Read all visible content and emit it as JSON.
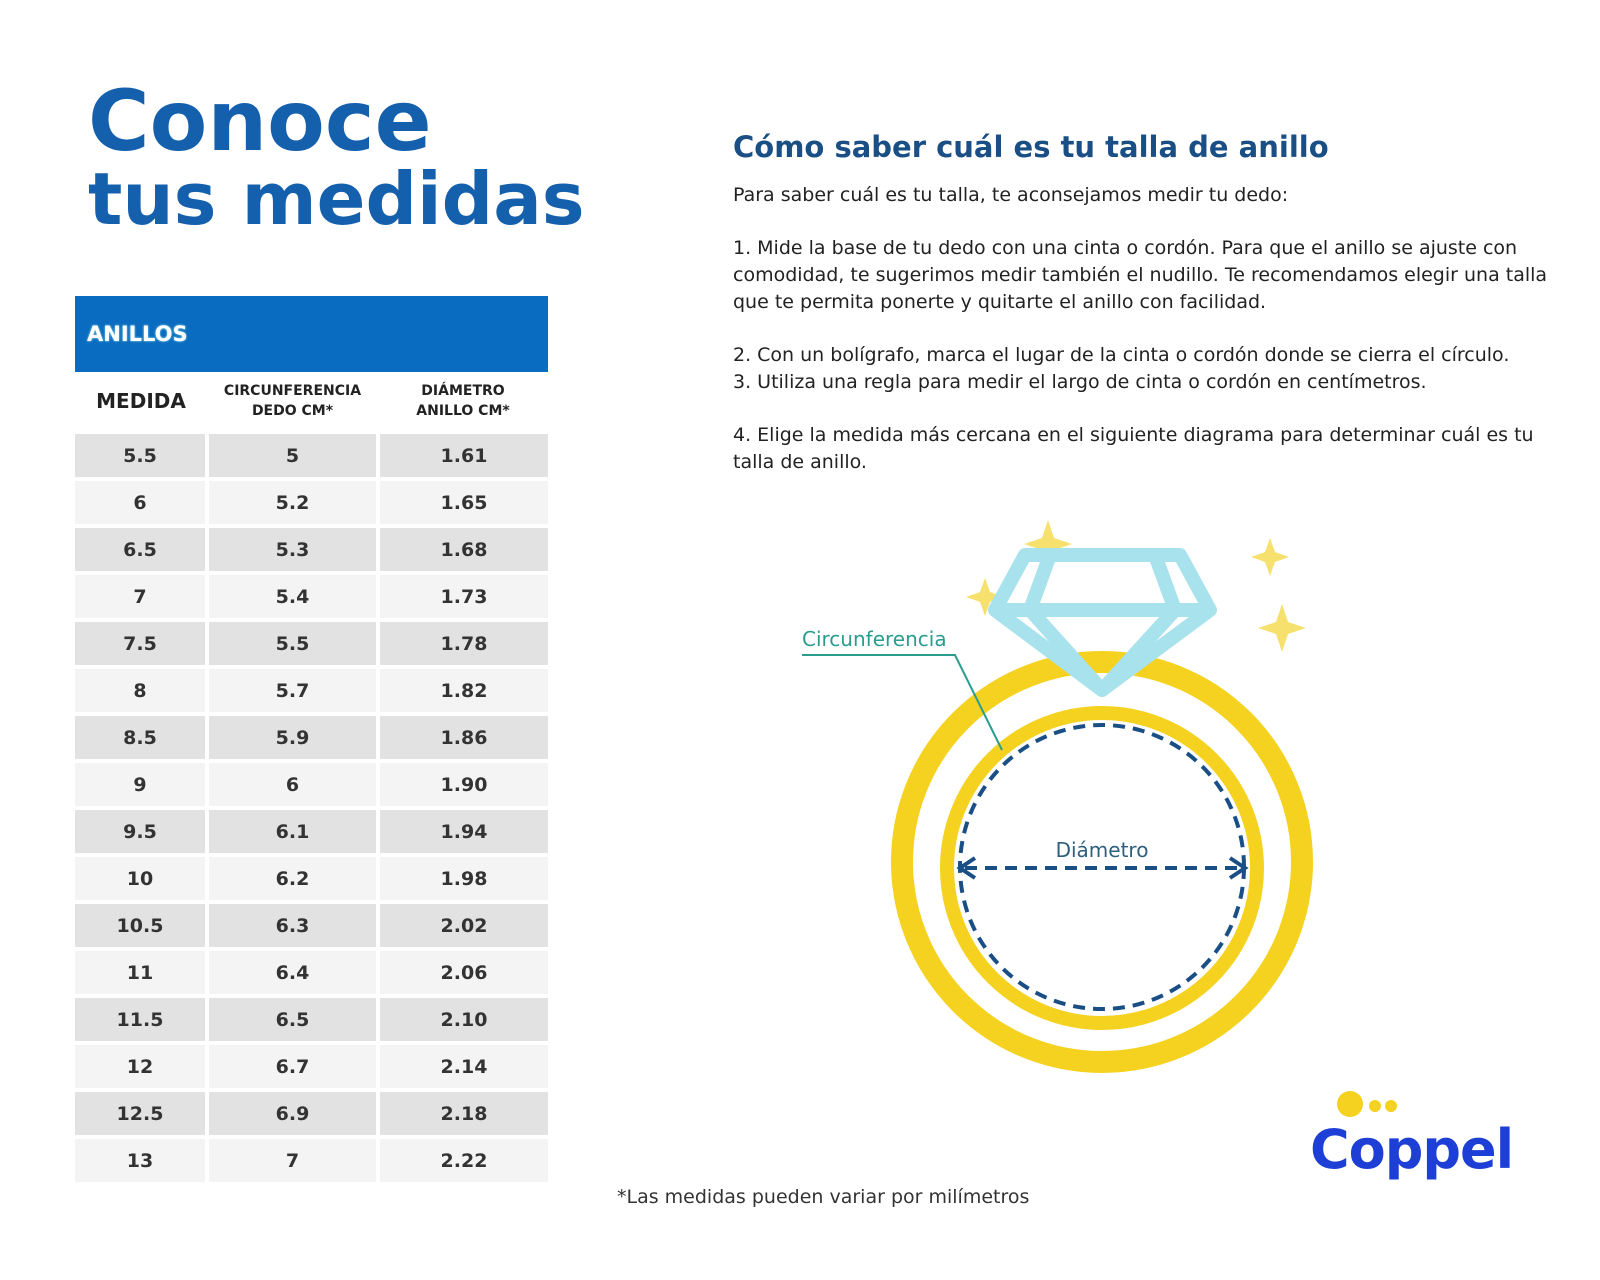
{
  "title": {
    "line1": "Conoce",
    "line2": "tus medidas"
  },
  "table": {
    "header": "ANILLOS",
    "columns": [
      "MEDIDA",
      "CIRCUNFERENCIA DEDO CM*",
      "DIÁMETRO ANILLO CM*"
    ],
    "column_lines": [
      [
        "MEDIDA"
      ],
      [
        "CIRCUNFERENCIA",
        "DEDO CM*"
      ],
      [
        "DIÁMETRO",
        "ANILLO CM*"
      ]
    ],
    "rows": [
      [
        "5.5",
        "5",
        "1.61"
      ],
      [
        "6",
        "5.2",
        "1.65"
      ],
      [
        "6.5",
        "5.3",
        "1.68"
      ],
      [
        "7",
        "5.4",
        "1.73"
      ],
      [
        "7.5",
        "5.5",
        "1.78"
      ],
      [
        "8",
        "5.7",
        "1.82"
      ],
      [
        "8.5",
        "5.9",
        "1.86"
      ],
      [
        "9",
        "6",
        "1.90"
      ],
      [
        "9.5",
        "6.1",
        "1.94"
      ],
      [
        "10",
        "6.2",
        "1.98"
      ],
      [
        "10.5",
        "6.3",
        "2.02"
      ],
      [
        "11",
        "6.4",
        "2.06"
      ],
      [
        "11.5",
        "6.5",
        "2.10"
      ],
      [
        "12",
        "6.7",
        "2.14"
      ],
      [
        "12.5",
        "6.9",
        "2.18"
      ],
      [
        "13",
        "7",
        "2.22"
      ]
    ]
  },
  "instructions": {
    "heading": "Cómo saber cuál es tu talla de anillo",
    "intro": "Para saber cuál es tu talla, te aconsejamos medir tu dedo:",
    "step1": "1. Mide la base de tu dedo con una cinta o cordón. Para que el anillo se ajuste con comodidad, te sugerimos medir también el nudillo. Te recomendamos elegir una talla que te permita ponerte y quitarte el anillo con facilidad.",
    "step2": "2. Con un bolígrafo, marca el lugar de la cinta o cordón donde se cierra el círculo.",
    "step3": "3. Utiliza una regla para medir el largo de cinta o cordón en centímetros.",
    "step4": "4. Elige la medida más cercana en el siguiente diagrama para determinar cuál es tu talla de anillo."
  },
  "diagram": {
    "circumference_label": "Circunferencia",
    "diameter_label": "Diámetro"
  },
  "footnote": "*Las medidas pueden variar por milímetros",
  "logo": {
    "text": "Coppel"
  },
  "colors": {
    "brand_blue": "#1560ad",
    "header_blue": "#0a6cc0",
    "ring_yellow": "#f5d21f",
    "diamond": "#a8e2ec",
    "dash_blue": "#1a4f86",
    "label_teal": "#2a9d8f",
    "logo_blue": "#1d3fd6"
  }
}
